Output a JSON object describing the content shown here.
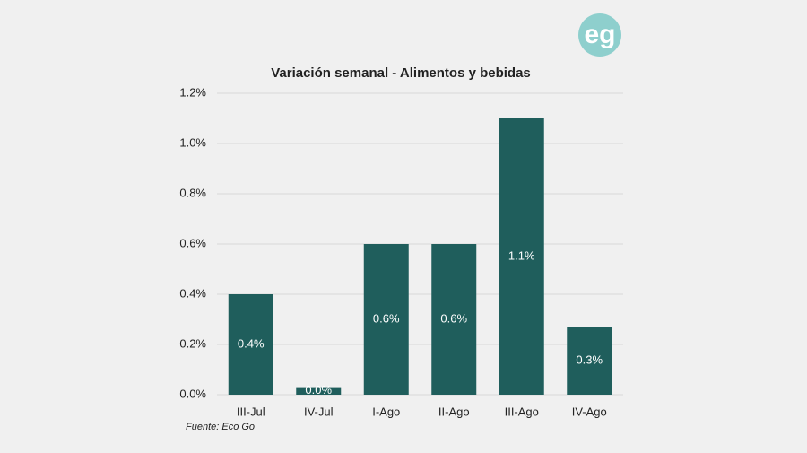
{
  "logo": "eg",
  "chart_data": {
    "type": "bar",
    "title": "Variación semanal - Alimentos y bebidas",
    "categories": [
      "III-Jul",
      "IV-Jul",
      "I-Ago",
      "II-Ago",
      "III-Ago",
      "IV-Ago"
    ],
    "values": [
      0.4,
      0.03,
      0.6,
      0.6,
      1.1,
      0.27
    ],
    "value_labels": [
      "0.4%",
      "0.0%",
      "0.6%",
      "0.6%",
      "1.1%",
      "0.3%"
    ],
    "color": "#1f5e5c",
    "ylim": [
      0,
      1.2
    ],
    "yticks": [
      {
        "value": 0,
        "label": "0.0%"
      },
      {
        "value": 0.2,
        "label": "0.2%"
      },
      {
        "value": 0.4,
        "label": "0.4%"
      },
      {
        "value": 0.6,
        "label": "0.6%"
      },
      {
        "value": 0.8,
        "label": "0.8%"
      },
      {
        "value": 1.0,
        "label": "1.0%"
      },
      {
        "value": 1.2,
        "label": "1.2%"
      }
    ],
    "grid": true,
    "source": "Fuente: Eco Go"
  }
}
